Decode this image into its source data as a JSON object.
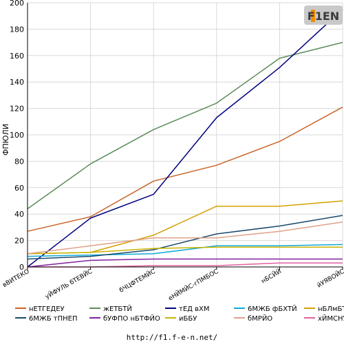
{
  "logo": {
    "text": "F1EN",
    "accent": "#f28c00"
  },
  "footer": {
    "url": "http://f1.f-e-n.net/"
  },
  "chart_data": {
    "type": "line",
    "title": "",
    "xlabel": "",
    "ylabel": "ФПЮЛИ",
    "ylim": [
      0,
      200
    ],
    "yticks": [
      0,
      20,
      40,
      60,
      80,
      100,
      120,
      140,
      160,
      180,
      200
    ],
    "categories": [
      "вВИТЕКО",
      "уЙФУЛЬ бТЕВЙС",
      "бЧЦФТЕМЙС",
      "еНЙМЙС-гПМБОС",
      "нБСЙЙ",
      "йУЯВОЙС"
    ],
    "grid": true,
    "legend_position": "bottom",
    "series": [
      {
        "name": "нЕТГЕДЕУ",
        "color": "#c86428",
        "values": [
          27,
          38,
          65,
          77,
          95,
          121
        ]
      },
      {
        "name": "жЕТБТЙ",
        "color": "#5a8c5a",
        "values": [
          44,
          78,
          104,
          124,
          158,
          170
        ]
      },
      {
        "name": "тЕД вХМ",
        "color": "#000080",
        "values": [
          0,
          37,
          55,
          113,
          151,
          195
        ]
      },
      {
        "name": "6МЖБ фБХТЙ",
        "color": "#10a8d8",
        "values": [
          8,
          9,
          10,
          16,
          16,
          17
        ]
      },
      {
        "name": "нБЛмБТЯО",
        "color": "#d4a000",
        "values": [
          10,
          11,
          24,
          46,
          46,
          50
        ]
      },
      {
        "name": "6МЖБ тПНЕП",
        "color": "#184a6c",
        "values": [
          6,
          8,
          13,
          25,
          31,
          39
        ]
      },
      {
        "name": "бУФПО нБТФЙО",
        "color": "#8020a0",
        "values": [
          0,
          5,
          6,
          6,
          6,
          6
        ]
      },
      {
        "name": "иББУ",
        "color": "#c8b400",
        "values": [
          10,
          11,
          14,
          15,
          15,
          15
        ]
      },
      {
        "name": "бМРЙО",
        "color": "#e0a088",
        "values": [
          10,
          16,
          22,
          22,
          27,
          34
        ]
      },
      {
        "name": "хЙМСНУ",
        "color": "#e060a0",
        "values": [
          0,
          0,
          1,
          1,
          3,
          3
        ]
      }
    ]
  }
}
